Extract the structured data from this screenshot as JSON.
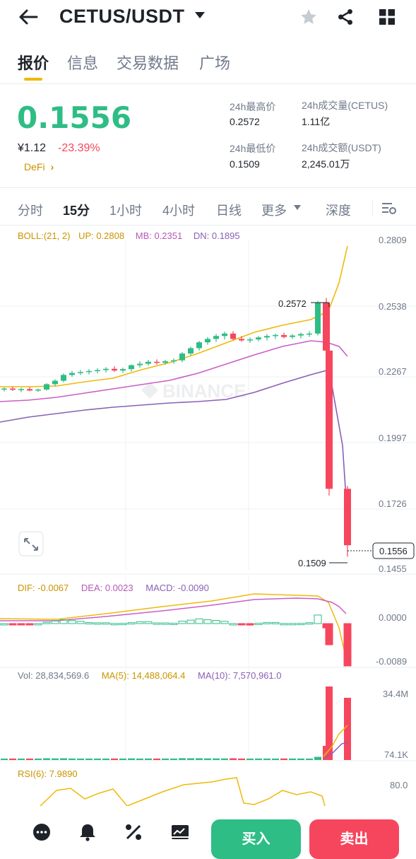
{
  "header": {
    "title": "CETUS/USDT"
  },
  "tabs": [
    {
      "label": "报价"
    },
    {
      "label": "信息"
    },
    {
      "label": "交易数据"
    },
    {
      "label": "广场"
    }
  ],
  "ticker": {
    "last_price": "0.1556",
    "cny_price": "¥1.12",
    "change_pct": "-23.39%",
    "tag": "DeFi",
    "high_label": "24h最高价",
    "high_value": "0.2572",
    "low_label": "24h最低价",
    "low_value": "0.1509",
    "vol_base_label": "24h成交量(CETUS)",
    "vol_base_value": "1.11亿",
    "vol_quote_label": "24h成交额(USDT)",
    "vol_quote_value": "2,245.01万"
  },
  "timeframes": [
    {
      "label": "分时"
    },
    {
      "label": "15分"
    },
    {
      "label": "1小时"
    },
    {
      "label": "4小时"
    },
    {
      "label": "日线"
    },
    {
      "label": "更多"
    },
    {
      "label": "深度"
    }
  ],
  "active_timeframe": "15分",
  "boll": {
    "label": "BOLL:(21, 2)",
    "up": "UP: 0.2808",
    "mb": "MB: 0.2351",
    "dn": "DN: 0.1895"
  },
  "macd": {
    "dif": "DIF: -0.0067",
    "dea": "DEA: 0.0023",
    "macd": "MACD: -0.0090"
  },
  "vol": {
    "vol": "Vol: 28,834,569.6",
    "ma5": "MA(5): 14,488,064.4",
    "ma10": "MA(10): 7,570,961.0"
  },
  "rsi": {
    "label": "RSI(6): 7.9890"
  },
  "price_axis": [
    "0.2809",
    "0.2538",
    "0.2267",
    "0.1997",
    "0.1726",
    "0.1455"
  ],
  "macd_axis": [
    "0.0000",
    "-0.0089"
  ],
  "vol_axis": [
    "34.4M",
    "74.1K"
  ],
  "rsi_axis": [
    "80.0"
  ],
  "markers": {
    "high": "0.2572",
    "low": "0.1509",
    "current": "0.1556"
  },
  "watermark": "BINANCE",
  "actions": {
    "buy": "买入",
    "sell": "卖出"
  },
  "colors": {
    "up": "#2ebd85",
    "down": "#f6465d",
    "accent": "#f0b90b",
    "purple": "#b659b6",
    "mb": "#8a5fb6"
  },
  "chart_data": {
    "type": "candlestick",
    "interval": "15分",
    "ylim": [
      0.1455,
      0.2809
    ],
    "candles": [
      [
        0.2198,
        0.2205,
        0.2188,
        0.22
      ],
      [
        0.22,
        0.2208,
        0.219,
        0.2195
      ],
      [
        0.2195,
        0.2203,
        0.2185,
        0.2198
      ],
      [
        0.2198,
        0.2206,
        0.2189,
        0.2192
      ],
      [
        0.2192,
        0.22,
        0.2186,
        0.2196
      ],
      [
        0.2196,
        0.2222,
        0.2192,
        0.2218
      ],
      [
        0.2218,
        0.2238,
        0.221,
        0.2232
      ],
      [
        0.2232,
        0.2262,
        0.2226,
        0.2256
      ],
      [
        0.2256,
        0.2272,
        0.2248,
        0.2264
      ],
      [
        0.2264,
        0.2276,
        0.2256,
        0.2268
      ],
      [
        0.2268,
        0.228,
        0.2258,
        0.2272
      ],
      [
        0.2272,
        0.2284,
        0.2262,
        0.2276
      ],
      [
        0.2276,
        0.2288,
        0.2266,
        0.2281
      ],
      [
        0.2281,
        0.2292,
        0.2268,
        0.2274
      ],
      [
        0.2274,
        0.2286,
        0.2264,
        0.228
      ],
      [
        0.228,
        0.23,
        0.227,
        0.2296
      ],
      [
        0.2296,
        0.2312,
        0.2286,
        0.2302
      ],
      [
        0.2302,
        0.2318,
        0.2294,
        0.231
      ],
      [
        0.231,
        0.232,
        0.2298,
        0.2306
      ],
      [
        0.2306,
        0.2318,
        0.2298,
        0.2312
      ],
      [
        0.2312,
        0.2324,
        0.2302,
        0.2316
      ],
      [
        0.2316,
        0.235,
        0.2308,
        0.2344
      ],
      [
        0.2344,
        0.2372,
        0.2336,
        0.2366
      ],
      [
        0.2366,
        0.2396,
        0.2356,
        0.239
      ],
      [
        0.239,
        0.2412,
        0.238,
        0.2404
      ],
      [
        0.2404,
        0.2424,
        0.2392,
        0.2416
      ],
      [
        0.2416,
        0.2434,
        0.2402,
        0.2426
      ],
      [
        0.2426,
        0.2436,
        0.2398,
        0.2404
      ],
      [
        0.2404,
        0.2416,
        0.2392,
        0.2398
      ],
      [
        0.2398,
        0.241,
        0.2388,
        0.2402
      ],
      [
        0.2402,
        0.2416,
        0.2394,
        0.241
      ],
      [
        0.241,
        0.2424,
        0.2398,
        0.2416
      ],
      [
        0.2416,
        0.2426,
        0.2404,
        0.242
      ],
      [
        0.242,
        0.243,
        0.2406,
        0.2412
      ],
      [
        0.2412,
        0.2424,
        0.2404,
        0.2418
      ],
      [
        0.2418,
        0.243,
        0.2406,
        0.2424
      ],
      [
        0.2424,
        0.2436,
        0.2412,
        0.2426
      ],
      [
        0.2426,
        0.256,
        0.2418,
        0.2552
      ],
      [
        0.2552,
        0.2572,
        0.234,
        0.2356
      ],
      [
        0.2356,
        0.2364,
        0.176,
        0.1788
      ],
      [
        0.1788,
        0.18,
        0.1509,
        0.1556
      ]
    ]
  }
}
